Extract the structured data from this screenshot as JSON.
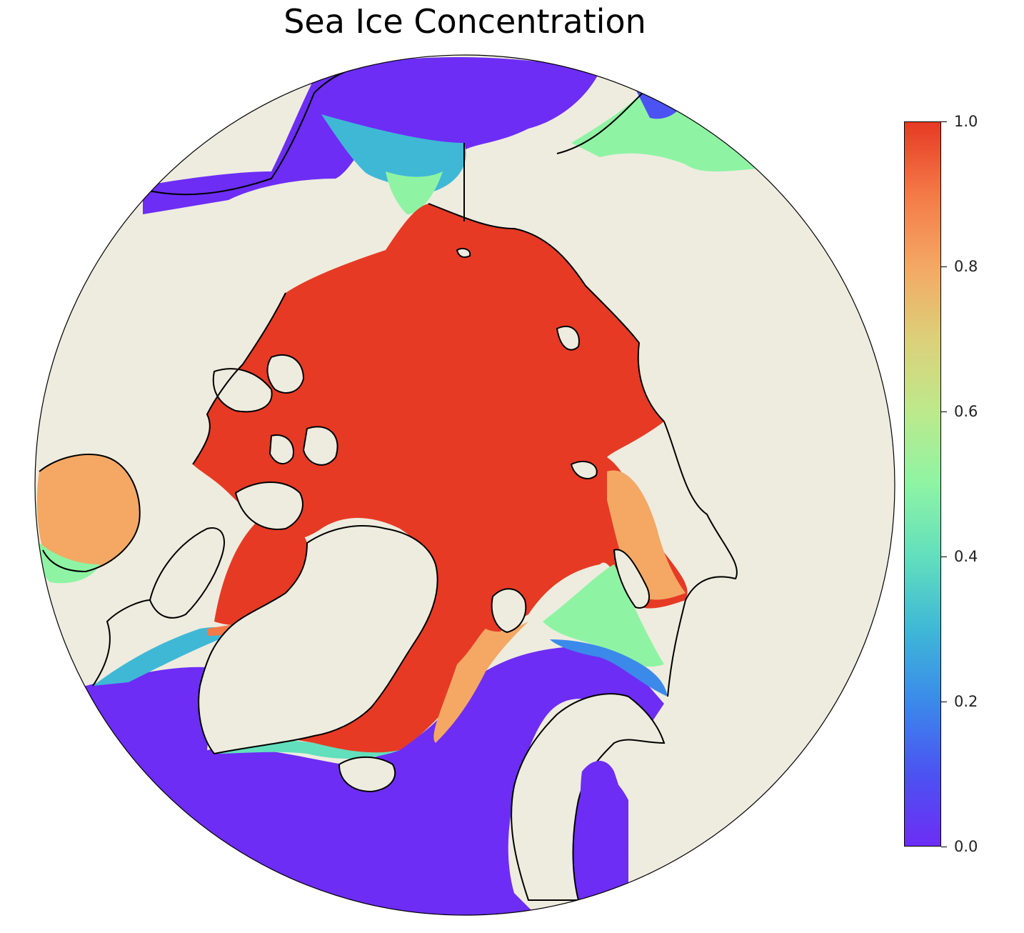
{
  "title": "Sea Ice Concentration",
  "colorbar": {
    "ticks": [
      "1.0",
      "0.8",
      "0.6",
      "0.4",
      "0.2",
      "0.0"
    ],
    "tick_values": [
      1.0,
      0.8,
      0.6,
      0.4,
      0.2,
      0.0
    ],
    "colormap": "rainbow",
    "range": [
      0.0,
      1.0
    ]
  },
  "map": {
    "projection": "north-polar-stereographic",
    "ocean_open_color": "#6d2df5",
    "ice_color": "#e63a24",
    "land_color": "#eeecdf",
    "coastline_color": "#000000"
  }
}
